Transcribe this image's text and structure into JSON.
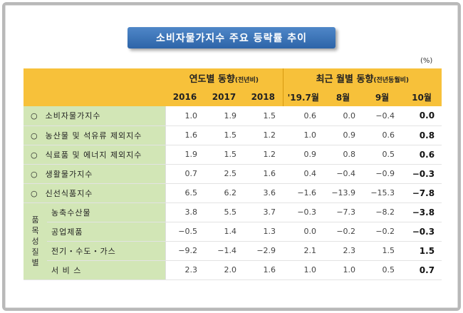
{
  "title": "소비자물가지수 주요 등락률 추이",
  "unit": "(%)",
  "header": {
    "group_annual": "연도별 동향",
    "group_annual_sub": "(전년비)",
    "group_monthly": "최근 월별 동향",
    "group_monthly_sub": "(전년동월비)",
    "columns": [
      "2016",
      "2017",
      "2018",
      "'19.7월",
      "8월",
      "9월",
      "10월"
    ]
  },
  "bullet": "○",
  "rows": [
    {
      "label": "소비자물가지수",
      "values": [
        "1.0",
        "1.9",
        "1.5",
        "0.6",
        "0.0",
        "−0.4",
        "0.0"
      ]
    },
    {
      "label": "농산물 및 석유류 제외지수",
      "values": [
        "1.6",
        "1.5",
        "1.2",
        "1.0",
        "0.9",
        "0.6",
        "0.8"
      ]
    },
    {
      "label": "식료품 및 에너지 제외지수",
      "values": [
        "1.9",
        "1.5",
        "1.2",
        "0.9",
        "0.8",
        "0.5",
        "0.6"
      ]
    },
    {
      "label": "생활물가지수",
      "values": [
        "0.7",
        "2.5",
        "1.6",
        "0.4",
        "−0.4",
        "−0.9",
        "−0.3"
      ]
    },
    {
      "label": "신선식품지수",
      "values": [
        "6.5",
        "6.2",
        "3.6",
        "−1.6",
        "−13.9",
        "−15.3",
        "−7.8"
      ]
    }
  ],
  "group": {
    "label_chars": [
      "품",
      "목",
      "성",
      "질",
      "별"
    ],
    "rows": [
      {
        "label": "농축수산물",
        "values": [
          "3.8",
          "5.5",
          "3.7",
          "−0.3",
          "−7.3",
          "−8.2",
          "−3.8"
        ]
      },
      {
        "label": "공업제품",
        "values": [
          "−0.5",
          "1.4",
          "1.3",
          "0.0",
          "−0.2",
          "−0.2",
          "−0.3"
        ]
      },
      {
        "label": "전기・수도・가스",
        "values": [
          "−9.2",
          "−1.4",
          "−2.9",
          "2.1",
          "2.3",
          "1.5",
          "1.5"
        ]
      },
      {
        "label": "서 비 스",
        "values": [
          "2.3",
          "2.0",
          "1.6",
          "1.0",
          "1.0",
          "0.5",
          "0.7"
        ]
      }
    ]
  }
}
